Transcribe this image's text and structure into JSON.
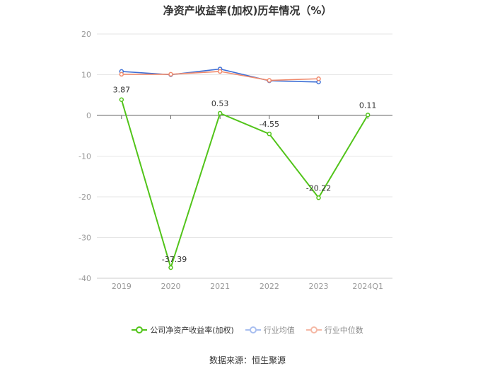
{
  "chart_data": {
    "type": "line",
    "title": "净资产收益率(加权)历年情况（%）",
    "categories": [
      "2019",
      "2020",
      "2021",
      "2022",
      "2023",
      "2024Q1"
    ],
    "ylim": [
      -40,
      20
    ],
    "yticks": [
      20,
      10,
      0,
      -10,
      -20,
      -30,
      -40
    ],
    "grid": true,
    "legend_position": "bottom",
    "series": [
      {
        "name": "公司净资产收益率(加权)",
        "color": "#52c41a",
        "values": [
          3.87,
          -37.39,
          0.53,
          -4.55,
          -20.22,
          0.11
        ],
        "labels": [
          "3.87",
          "-37.39",
          "0.53",
          "-4.55",
          "-20.22",
          "0.11"
        ]
      },
      {
        "name": "行业均值",
        "color": "#3d6fd6",
        "values": [
          10.8,
          10.0,
          11.4,
          8.5,
          8.2,
          null
        ]
      },
      {
        "name": "行业中位数",
        "color": "#f08a6c",
        "values": [
          10.1,
          10.1,
          10.8,
          8.6,
          9.0,
          null
        ]
      }
    ]
  },
  "legend": {
    "company_label": "公司净资产收益率(加权)",
    "industry_avg_label": "行业均值",
    "industry_median_label": "行业中位数"
  },
  "source": "数据来源：恒生聚源"
}
